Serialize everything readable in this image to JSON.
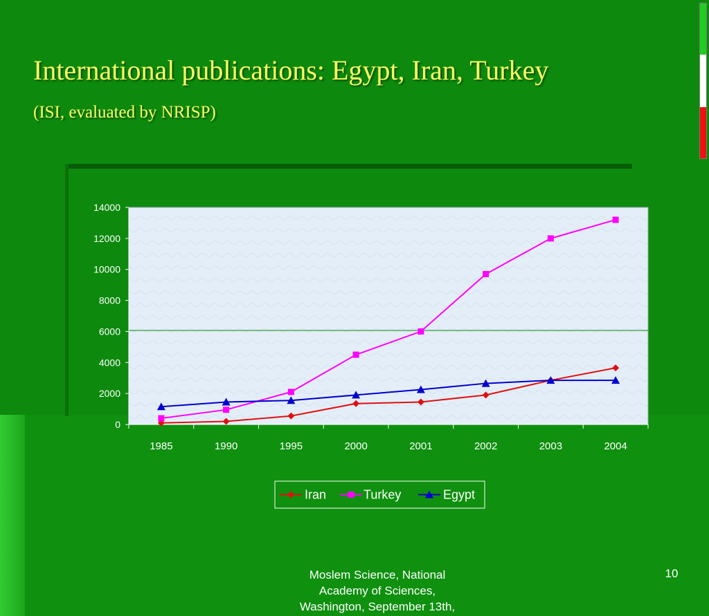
{
  "slide": {
    "title": "International publications: Egypt, Iran, Turkey",
    "subtitle": "(ISI, evaluated by NRISP)",
    "footer_lines": [
      "Moslem Science, National",
      "Academy of Sciences,",
      "Washington, September 13th,"
    ],
    "page_number": "10"
  },
  "colors": {
    "background": "#0d8a0d",
    "title": "#ffff66",
    "iran": "#e01010",
    "turkey": "#ff00ff",
    "egypt": "#0000cc",
    "plot_background": "#e4eef8"
  },
  "chart_data": {
    "type": "line",
    "categories": [
      "1985",
      "1990",
      "1995",
      "2000",
      "2001",
      "2002",
      "2003",
      "2004"
    ],
    "ylim": [
      0,
      14000
    ],
    "yticks": [
      "0",
      "2000",
      "4000",
      "6000",
      "8000",
      "10000",
      "12000",
      "14000"
    ],
    "grid": false,
    "legend_position": "bottom",
    "series": [
      {
        "name": "Iran",
        "marker": "diamond",
        "color": "#e01010",
        "values": [
          100,
          200,
          550,
          1350,
          1450,
          1900,
          2850,
          3650
        ]
      },
      {
        "name": "Turkey",
        "marker": "square",
        "color": "#ff00ff",
        "values": [
          400,
          950,
          2100,
          4500,
          6000,
          9700,
          12000,
          13200
        ]
      },
      {
        "name": "Egypt",
        "marker": "triangle",
        "color": "#0000cc",
        "values": [
          1150,
          1450,
          1550,
          1900,
          2250,
          2650,
          2850,
          2850
        ]
      }
    ]
  }
}
